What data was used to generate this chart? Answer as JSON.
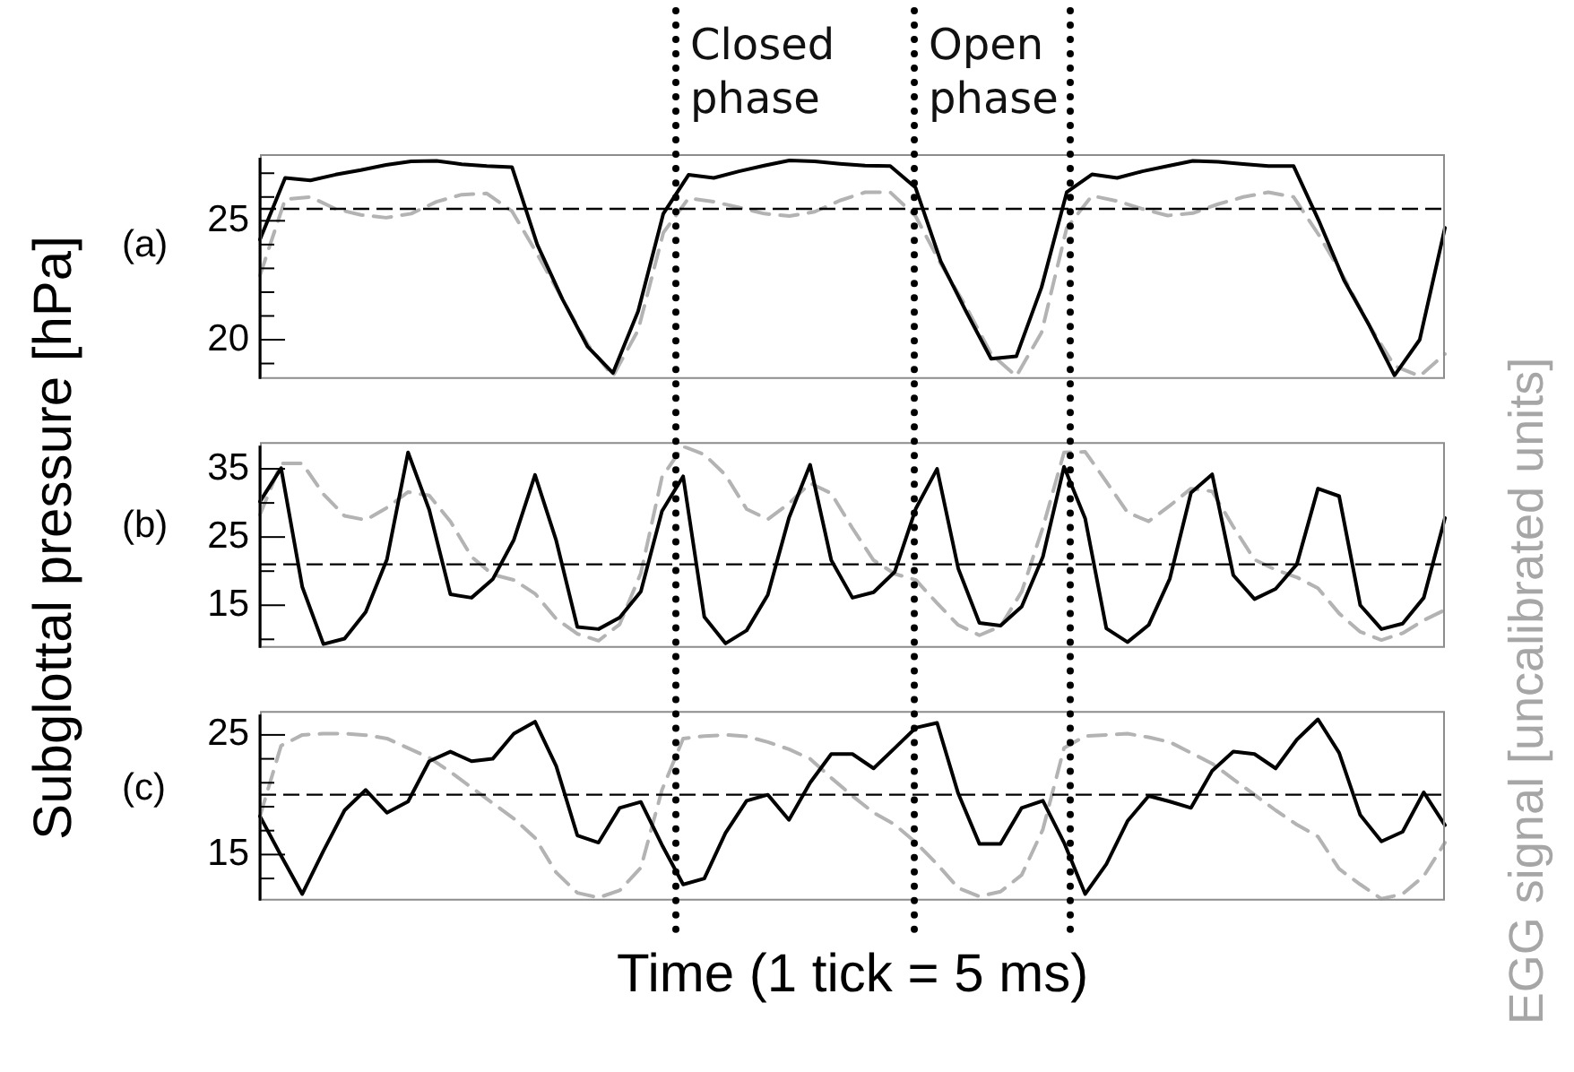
{
  "chart_data": [
    {
      "type": "line",
      "annotations": [
        "(a)",
        "Closed phase",
        "Open phase"
      ],
      "categories": [
        null,
        null,
        null,
        null,
        null,
        null,
        null,
        null,
        null,
        null,
        null,
        null,
        null,
        null,
        null,
        null,
        null,
        null,
        null,
        null,
        null,
        null,
        null,
        null,
        null,
        null,
        null,
        null,
        null,
        null,
        null,
        null,
        null,
        null,
        null,
        null,
        null,
        null,
        null,
        null,
        null,
        null,
        null,
        null,
        null,
        null,
        null,
        null
      ],
      "ylim": [
        18.35,
        27.65
      ],
      "yticks": [
        {
          "value": 19,
          "label": null
        },
        20,
        {
          "value": 21,
          "label": null
        },
        {
          "value": 22,
          "label": null
        },
        {
          "value": 23,
          "label": null
        },
        {
          "value": 24,
          "label": null
        },
        25,
        {
          "value": 26,
          "label": null
        },
        {
          "value": 27,
          "label": null
        }
      ],
      "marker": "none",
      "legend": false,
      "series": [
        {
          "color": "#000000",
          "line_style": "solid",
          "values": [
            24.21,
            26.8,
            26.7,
            26.94,
            27.13,
            27.35,
            27.5,
            27.52,
            27.38,
            27.3,
            27.25,
            24.0,
            21.7,
            19.7,
            18.6,
            21.2,
            25.3,
            26.93,
            26.8,
            27.08,
            27.32,
            27.54,
            27.5,
            27.4,
            27.32,
            27.3,
            26.4,
            23.3,
            21.2,
            19.2,
            19.3,
            22.2,
            26.2,
            26.95,
            26.8,
            27.08,
            27.3,
            27.52,
            27.48,
            27.39,
            27.3,
            27.3,
            25.0,
            22.5,
            20.6,
            18.5,
            20.0,
            24.7
          ]
        },
        {
          "color": "#b3b3b3",
          "line_style": "dashed",
          "values": [
            22.7,
            25.9,
            26.0,
            25.5,
            25.25,
            25.13,
            25.3,
            25.8,
            26.1,
            26.15,
            25.4,
            23.6,
            21.7,
            19.8,
            18.47,
            20.4,
            24.5,
            25.95,
            25.8,
            25.56,
            25.3,
            25.2,
            25.38,
            25.85,
            26.2,
            26.2,
            25.2,
            23.2,
            21.4,
            19.4,
            18.47,
            20.3,
            24.7,
            26.05,
            25.83,
            25.5,
            25.22,
            25.32,
            25.7,
            26.0,
            26.2,
            26.0,
            24.4,
            22.6,
            20.6,
            18.9,
            18.47,
            19.4
          ]
        }
      ],
      "ref_lines": [
        {
          "axis": "y",
          "value": 25.5,
          "line_style": "dashed",
          "color": "#000000"
        }
      ]
    },
    {
      "type": "line",
      "ylabel": "Subglottal pressure [hPa]",
      "y2label": "EGG signal [uncalibrated units]",
      "annotations": [
        "(b)"
      ],
      "categories": [
        null,
        null,
        null,
        null,
        null,
        null,
        null,
        null,
        null,
        null,
        null,
        null,
        null,
        null,
        null,
        null,
        null,
        null,
        null,
        null,
        null,
        null,
        null,
        null,
        null,
        null,
        null,
        null,
        null,
        null,
        null,
        null,
        null,
        null,
        null,
        null,
        null,
        null,
        null,
        null,
        null,
        null,
        null,
        null,
        null,
        null,
        null,
        null,
        null,
        null,
        null,
        null,
        null,
        null,
        null,
        null,
        null
      ],
      "ylim": [
        8.75,
        38.4
      ],
      "yticks": [
        {
          "value": 10,
          "label": null
        },
        15,
        {
          "value": 20,
          "label": null
        },
        25,
        {
          "value": 30,
          "label": null
        },
        35
      ],
      "marker": "none",
      "legend": false,
      "series": [
        {
          "color": "#000000",
          "line_style": "solid",
          "values": [
            30.19,
            35.1,
            17.7,
            9.3,
            10.1,
            14.0,
            21.7,
            37.41,
            29.0,
            16.6,
            16.1,
            18.8,
            24.6,
            34.1,
            24.5,
            11.8,
            11.5,
            13.2,
            17.0,
            28.8,
            33.9,
            13.3,
            9.4,
            11.3,
            16.5,
            27.8,
            35.6,
            21.6,
            16.1,
            16.9,
            19.9,
            29.2,
            35.0,
            20.4,
            12.4,
            12.0,
            14.8,
            22.1,
            35.3,
            27.7,
            11.6,
            9.6,
            12.1,
            18.9,
            31.5,
            34.2,
            19.4,
            15.9,
            17.4,
            21.0,
            32.1,
            31.0,
            15.0,
            11.5,
            12.3,
            16.1,
            27.78
          ]
        },
        {
          "color": "#b3b3b3",
          "line_style": "dashed",
          "values": [
            28.26,
            35.8,
            35.8,
            31.3,
            28.1,
            27.5,
            29.3,
            31.6,
            31.1,
            27.3,
            22.1,
            19.5,
            18.7,
            16.7,
            13.0,
            10.8,
            9.8,
            12.2,
            19.7,
            33.8,
            38.3,
            37.1,
            34.1,
            29.1,
            27.6,
            29.9,
            32.9,
            31.4,
            26.3,
            21.6,
            19.6,
            18.7,
            15.3,
            12.1,
            10.6,
            11.9,
            17.0,
            26.4,
            37.4,
            37.5,
            33.1,
            28.6,
            27.3,
            29.6,
            32.1,
            31.7,
            26.5,
            21.7,
            20.2,
            19.1,
            17.5,
            13.8,
            11.1,
            9.9,
            10.9,
            12.8,
            14.31
          ]
        }
      ],
      "ref_lines": [
        {
          "axis": "y",
          "value": 21,
          "line_style": "dashed",
          "color": "#000000"
        }
      ]
    },
    {
      "type": "line",
      "xlabel": "Time (1 tick = 5 ms)",
      "annotations": [
        "(c)"
      ],
      "categories": [
        null,
        null,
        null,
        null,
        null,
        null,
        null,
        null,
        null,
        null,
        null,
        null,
        null,
        null,
        null,
        null,
        null,
        null,
        null,
        null,
        null,
        null,
        null,
        null,
        null,
        null,
        null,
        null,
        null,
        null,
        null,
        null,
        null,
        null,
        null,
        null,
        null,
        null,
        null,
        null,
        null,
        null,
        null,
        null,
        null,
        null,
        null,
        null,
        null,
        null,
        null,
        null,
        null,
        null,
        null,
        null,
        null
      ],
      "ylim": [
        11.15,
        26.7
      ],
      "yticks": [
        {
          "value": 13,
          "label": null
        },
        15,
        {
          "value": 17,
          "label": null
        },
        {
          "value": 19,
          "label": null
        },
        {
          "value": 21,
          "label": null
        },
        {
          "value": 23,
          "label": null
        },
        25
      ],
      "marker": "none",
      "legend": false,
      "series": [
        {
          "color": "#000000",
          "line_style": "solid",
          "values": [
            18.2,
            14.9,
            11.7,
            15.3,
            18.7,
            20.4,
            18.5,
            19.43,
            22.8,
            23.6,
            22.8,
            23.0,
            25.1,
            26.1,
            22.4,
            16.6,
            16.0,
            18.9,
            19.4,
            15.8,
            12.5,
            13.0,
            16.8,
            19.5,
            20.0,
            17.9,
            21.0,
            23.4,
            23.4,
            22.2,
            23.9,
            25.6,
            26.0,
            20.1,
            15.9,
            15.9,
            18.9,
            19.5,
            16.0,
            11.7,
            14.2,
            17.8,
            19.9,
            19.43,
            18.9,
            22.0,
            23.6,
            23.4,
            22.2,
            24.6,
            26.3,
            23.5,
            18.3,
            16.1,
            16.9,
            20.2,
            17.46
          ]
        },
        {
          "color": "#b3b3b3",
          "line_style": "dashed",
          "values": [
            18.2,
            24.1,
            25.0,
            25.1,
            25.1,
            24.98,
            24.7,
            23.9,
            23.1,
            21.9,
            20.6,
            19.3,
            18.0,
            16.4,
            13.5,
            11.8,
            11.4,
            12.0,
            13.9,
            20.4,
            24.7,
            24.9,
            25.0,
            24.88,
            24.4,
            23.8,
            23.0,
            21.4,
            19.9,
            18.5,
            17.5,
            16.0,
            14.2,
            12.2,
            11.5,
            11.9,
            13.3,
            17.1,
            23.9,
            24.9,
            25.0,
            25.1,
            24.8,
            24.4,
            23.5,
            22.6,
            21.3,
            20.0,
            18.7,
            17.5,
            16.5,
            13.8,
            12.5,
            11.3,
            11.7,
            13.2,
            15.99
          ]
        }
      ],
      "ref_lines": [
        {
          "axis": "y",
          "value": 20,
          "line_style": "dashed",
          "color": "#000000"
        }
      ]
    }
  ]
}
